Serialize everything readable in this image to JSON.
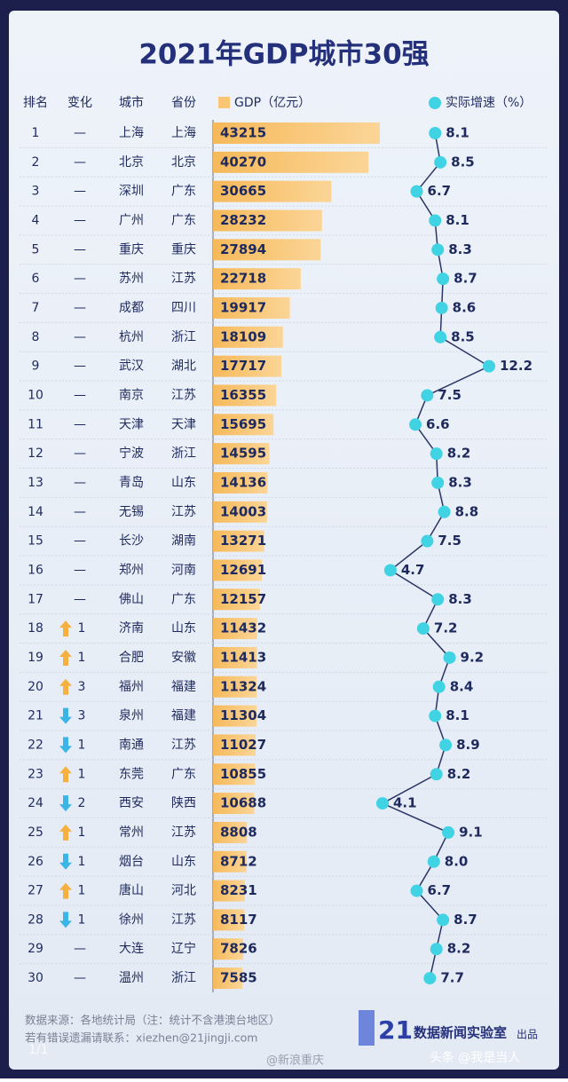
{
  "chart_data": {
    "type": "bar",
    "title": "2021年GDP城市30强",
    "headers": [
      "排名",
      "变化",
      "城市",
      "省份"
    ],
    "ranks": [
      1,
      2,
      3,
      4,
      5,
      6,
      7,
      8,
      9,
      10,
      11,
      12,
      13,
      14,
      15,
      16,
      17,
      18,
      19,
      20,
      21,
      22,
      23,
      24,
      25,
      26,
      27,
      28,
      29,
      30
    ],
    "changes": [
      "—",
      "—",
      "—",
      "—",
      "—",
      "—",
      "—",
      "—",
      "—",
      "—",
      "—",
      "—",
      "—",
      "—",
      "—",
      "—",
      "—",
      {
        "value": 1,
        "direction": "up"
      },
      {
        "value": 1,
        "direction": "up"
      },
      {
        "value": 3,
        "direction": "up"
      },
      {
        "value": 3,
        "direction": "down"
      },
      {
        "value": 1,
        "direction": "down"
      },
      {
        "value": 1,
        "direction": "up"
      },
      {
        "value": 2,
        "direction": "down"
      },
      {
        "value": 1,
        "direction": "up"
      },
      {
        "value": 1,
        "direction": "down"
      },
      {
        "value": 1,
        "direction": "up"
      },
      {
        "value": 1,
        "direction": "down"
      },
      "—",
      "—"
    ],
    "categories": [
      "上海",
      "北京",
      "深圳",
      "广州",
      "重庆",
      "苏州",
      "成都",
      "杭州",
      "武汉",
      "南京",
      "天津",
      "宁波",
      "青岛",
      "无锡",
      "长沙",
      "郑州",
      "佛山",
      "济南",
      "合肥",
      "福州",
      "泉州",
      "南通",
      "东莞",
      "西安",
      "常州",
      "烟台",
      "唐山",
      "徐州",
      "大连",
      "温州"
    ],
    "provinces": [
      "上海",
      "北京",
      "广东",
      "广东",
      "重庆",
      "江苏",
      "四川",
      "浙江",
      "湖北",
      "江苏",
      "天津",
      "浙江",
      "山东",
      "江苏",
      "湖南",
      "河南",
      "广东",
      "山东",
      "安徽",
      "福建",
      "福建",
      "江苏",
      "广东",
      "陕西",
      "江苏",
      "山东",
      "河北",
      "江苏",
      "辽宁",
      "浙江"
    ],
    "series": [
      {
        "name": "GDP（亿元）",
        "color": "#f9c675",
        "values": [
          43215,
          40270,
          30665,
          28232,
          27894,
          22718,
          19917,
          18109,
          17717,
          16355,
          15695,
          14595,
          14136,
          14003,
          13271,
          12691,
          12157,
          11432,
          11413,
          11324,
          11304,
          11027,
          10855,
          10688,
          8808,
          8712,
          8231,
          8117,
          7826,
          7585
        ]
      },
      {
        "name": "实际增速（%）",
        "color": "#3fd3e3",
        "type": "line",
        "values": [
          8.1,
          8.5,
          6.7,
          8.1,
          8.3,
          8.7,
          8.6,
          8.5,
          12.2,
          7.5,
          6.6,
          8.2,
          8.3,
          8.8,
          7.5,
          4.7,
          8.3,
          7.2,
          9.2,
          8.4,
          8.1,
          8.9,
          8.2,
          4.1,
          9.1,
          8.0,
          6.7,
          8.7,
          8.2,
          7.7
        ],
        "value_labels": [
          "8.1",
          "8.5",
          "6.7",
          "8.1",
          "8.3",
          "8.7",
          "8.6",
          "8.5",
          "12.2",
          "7.5",
          "6.6",
          "8.2",
          "8.3",
          "8.8",
          "7.5",
          "4.7",
          "8.3",
          "7.2",
          "9.2",
          "8.4",
          "8.1",
          "8.9",
          "8.2",
          "4.1",
          "9.1",
          "8.0",
          "6.7",
          "8.7",
          "8.2",
          "7.7"
        ]
      }
    ],
    "footer": {
      "source": "数据来源：各地统计局（注：统计不含港澳台地区）",
      "contact": "若有错误遗漏请联系：xiezhen@21jingji.com",
      "logo_number": "21",
      "logo_text": "数据新闻实验室",
      "logo_suffix": "出品",
      "watermark": "@新浪重庆",
      "watermark2": "头条 @我是当人",
      "page": "1/1"
    }
  }
}
